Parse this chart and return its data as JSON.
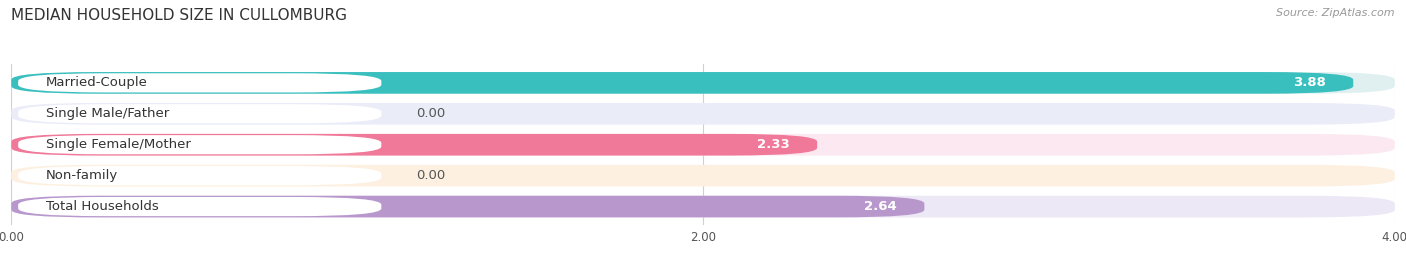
{
  "title": "MEDIAN HOUSEHOLD SIZE IN CULLOMBURG",
  "source": "Source: ZipAtlas.com",
  "categories": [
    "Married-Couple",
    "Single Male/Father",
    "Single Female/Mother",
    "Non-family",
    "Total Households"
  ],
  "values": [
    3.88,
    0.0,
    2.33,
    0.0,
    2.64
  ],
  "bar_colors": [
    "#3abfbf",
    "#9db8e8",
    "#f07898",
    "#f5c890",
    "#b898cc"
  ],
  "bar_bg_colors": [
    "#e0f0f0",
    "#eaecf8",
    "#fce8f0",
    "#fdf0e0",
    "#ede8f5"
  ],
  "xlim": [
    0,
    4.0
  ],
  "xticks": [
    0.0,
    2.0,
    4.0
  ],
  "xtick_labels": [
    "0.00",
    "2.00",
    "4.00"
  ],
  "label_fontsize": 9.5,
  "value_fontsize": 9.5,
  "title_fontsize": 11,
  "source_fontsize": 8,
  "background_color": "#ffffff",
  "row_bg_color": "#f0f0f0"
}
